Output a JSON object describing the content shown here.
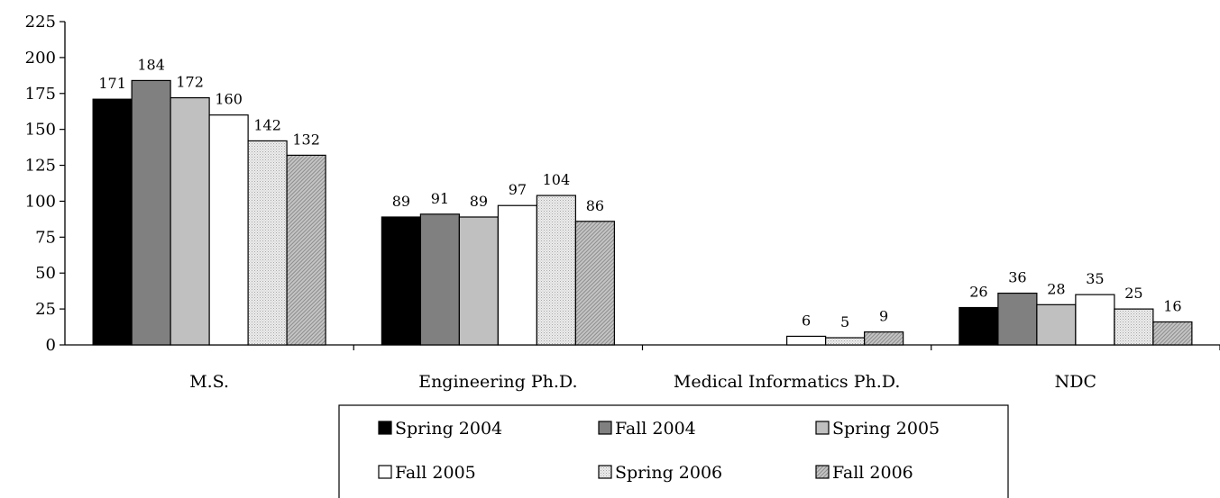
{
  "chart_data": {
    "type": "bar",
    "title": "",
    "xlabel": "",
    "ylabel": "",
    "ylim": [
      0,
      225
    ],
    "yticks": [
      0,
      25,
      50,
      75,
      100,
      125,
      150,
      175,
      200,
      225
    ],
    "grid": false,
    "legend_position": "bottom",
    "categories": [
      "M.S.",
      "Engineering Ph.D.",
      "Medical Informatics Ph.D.",
      "NDC"
    ],
    "series": [
      {
        "name": "Spring 2004",
        "color": "#000000",
        "pattern": "solid",
        "values": [
          171,
          89,
          null,
          26
        ]
      },
      {
        "name": "Fall 2004",
        "color": "#808080",
        "pattern": "solid",
        "values": [
          184,
          91,
          null,
          36
        ]
      },
      {
        "name": "Spring 2005",
        "color": "#c0c0c0",
        "pattern": "solid",
        "values": [
          172,
          89,
          null,
          28
        ]
      },
      {
        "name": "Fall 2005",
        "color": "#ffffff",
        "pattern": "solid",
        "values": [
          160,
          97,
          6,
          35
        ]
      },
      {
        "name": "Spring 2006",
        "color": "#e6e6e6",
        "pattern": "dotted",
        "values": [
          142,
          104,
          5,
          25
        ]
      },
      {
        "name": "Fall 2006",
        "color": "#b8b8b8",
        "pattern": "hatched",
        "values": [
          132,
          86,
          9,
          16
        ]
      }
    ]
  }
}
